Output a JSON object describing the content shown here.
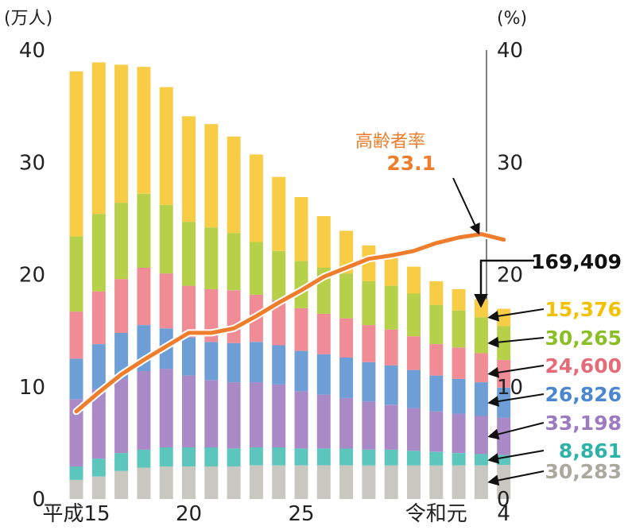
{
  "chart_data": {
    "type": "bar",
    "stacked": true,
    "y_left_unit": "(万人)",
    "y_right_unit": "(%)",
    "ylim": [
      0,
      40
    ],
    "y_right_lim": [
      0,
      40
    ],
    "y_ticks": [
      "0",
      "10",
      "20",
      "30",
      "40"
    ],
    "x_tick_labels": [
      {
        "index": 0,
        "label": "平成15"
      },
      {
        "index": 5,
        "label": "20"
      },
      {
        "index": 10,
        "label": "25"
      },
      {
        "index": 16,
        "label": "令和元"
      },
      {
        "index": 19,
        "label": "4"
      }
    ],
    "categories": [
      "平成15",
      "平成16",
      "平成17",
      "平成18",
      "平成19",
      "平成20",
      "平成21",
      "平成22",
      "平成23",
      "平成24",
      "平成25",
      "平成26",
      "平成27",
      "平成28",
      "平成29",
      "平成30",
      "令和元",
      "令和2",
      "令和3",
      "令和4"
    ],
    "series": [
      {
        "color": "#c9c8c0",
        "values": [
          1.7,
          2.0,
          2.5,
          2.8,
          2.9,
          2.9,
          2.9,
          2.9,
          3.0,
          3.0,
          3.0,
          3.0,
          3.0,
          3.0,
          3.0,
          3.0,
          3.0,
          3.0,
          3.0,
          3.03
        ]
      },
      {
        "color": "#5cc6bd",
        "values": [
          1.2,
          1.6,
          1.6,
          1.6,
          1.7,
          1.7,
          1.7,
          1.6,
          1.6,
          1.6,
          1.5,
          1.5,
          1.5,
          1.4,
          1.4,
          1.3,
          1.2,
          1.1,
          1.0,
          0.89
        ]
      },
      {
        "color": "#a98ac6",
        "values": [
          6.0,
          6.2,
          6.6,
          7.0,
          7.0,
          6.4,
          6.0,
          5.9,
          5.8,
          5.6,
          5.1,
          4.8,
          4.5,
          4.3,
          4.0,
          3.8,
          3.6,
          3.5,
          3.4,
          3.32
        ]
      },
      {
        "color": "#6e9ed6",
        "values": [
          3.6,
          4.0,
          4.1,
          4.1,
          3.6,
          3.4,
          3.4,
          3.5,
          3.6,
          3.5,
          3.6,
          3.6,
          3.6,
          3.5,
          3.5,
          3.4,
          3.2,
          3.1,
          3.0,
          2.68
        ]
      },
      {
        "color": "#ef8c95",
        "values": [
          4.2,
          4.7,
          4.8,
          5.1,
          4.9,
          4.6,
          4.7,
          4.7,
          4.2,
          4.0,
          3.8,
          3.6,
          3.5,
          3.3,
          3.2,
          3.0,
          2.8,
          2.8,
          2.6,
          2.46
        ]
      },
      {
        "color": "#b6d04a",
        "values": [
          6.7,
          6.9,
          6.8,
          6.6,
          6.1,
          5.7,
          5.5,
          5.1,
          4.7,
          4.4,
          4.2,
          4.1,
          4.0,
          3.9,
          3.9,
          3.8,
          3.5,
          3.3,
          3.2,
          3.03
        ]
      },
      {
        "color": "#f8cd45",
        "values": [
          14.7,
          13.5,
          12.3,
          11.3,
          10.5,
          9.4,
          9.2,
          8.6,
          7.8,
          6.6,
          5.7,
          4.6,
          3.8,
          3.2,
          2.7,
          2.4,
          2.1,
          1.9,
          1.6,
          1.54
        ]
      }
    ],
    "rate_line": {
      "name": "高齢者率",
      "unit": "%",
      "color": "#ef7d2c",
      "values": [
        7.8,
        9.5,
        11.1,
        12.4,
        13.6,
        14.8,
        14.8,
        15.2,
        16.3,
        17.5,
        18.6,
        19.8,
        20.6,
        21.4,
        21.7,
        22.1,
        22.8,
        23.3,
        23.6,
        23.1
      ],
      "final_label": "23.1"
    },
    "total_label": "169,409",
    "segment_labels": [
      {
        "value": "15,376",
        "color": "#f2c200"
      },
      {
        "value": "30,265",
        "color": "#8cbf26"
      },
      {
        "value": "24,600",
        "color": "#e66b78"
      },
      {
        "value": "26,826",
        "color": "#4a87d0"
      },
      {
        "value": "33,198",
        "color": "#9c7bc0"
      },
      {
        "value": "8,861",
        "color": "#2fb3a8"
      },
      {
        "value": "30,283",
        "color": "#aaa9a0"
      }
    ]
  }
}
